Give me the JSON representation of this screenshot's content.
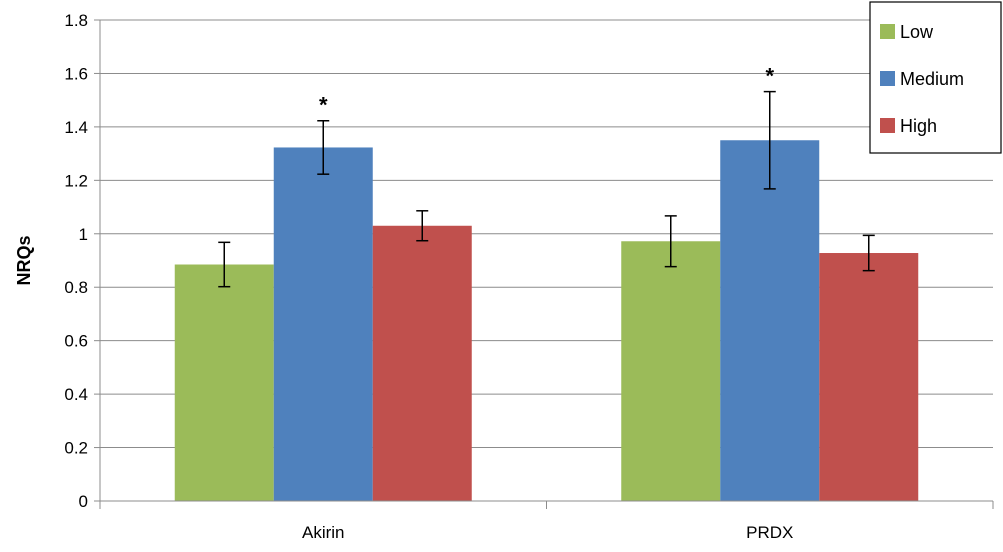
{
  "chart_data": {
    "type": "bar",
    "categories": [
      "Akirin",
      "PRDX"
    ],
    "ylabel": "NRQs",
    "xlabel": "",
    "ylim": [
      0,
      1.8
    ],
    "yticks": [
      "0",
      "0.2",
      "0.4",
      "0.6",
      "0.8",
      "1",
      "1.2",
      "1.4",
      "1.6",
      "1.8"
    ],
    "grid": true,
    "legend_position": "top-right",
    "series": [
      {
        "name": "Low",
        "color": "#9bbb59",
        "values": [
          0.885,
          0.972
        ],
        "errors": [
          0.083,
          0.095
        ],
        "significance": [
          "",
          ""
        ]
      },
      {
        "name": "Medium",
        "color": "#4f81bd",
        "values": [
          1.323,
          1.35
        ],
        "errors": [
          0.1,
          0.182
        ],
        "significance": [
          "*",
          "*"
        ]
      },
      {
        "name": "High",
        "color": "#c0504d",
        "values": [
          1.03,
          0.928
        ],
        "errors": [
          0.056,
          0.066
        ],
        "significance": [
          "",
          ""
        ]
      }
    ]
  }
}
